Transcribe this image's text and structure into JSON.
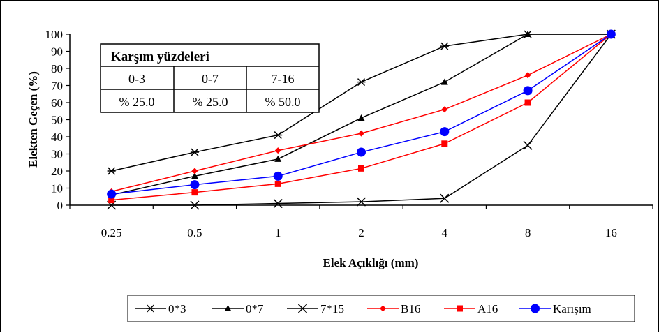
{
  "chart_data": {
    "type": "line",
    "title": "",
    "xlabel": "Elek Açıklığı (mm)",
    "ylabel": "Elekten Geçen (%)",
    "categories": [
      "0.25",
      "0.5",
      "1",
      "2",
      "4",
      "8",
      "16"
    ],
    "ylim": [
      0,
      100
    ],
    "yticks": [
      0,
      10,
      20,
      30,
      40,
      50,
      60,
      70,
      80,
      90,
      100
    ],
    "grid": false,
    "legend_position": "bottom",
    "series": [
      {
        "name": "0*3",
        "color": "#000000",
        "marker": "star",
        "values": [
          20,
          31,
          41,
          72,
          93,
          100,
          100
        ]
      },
      {
        "name": "0*7",
        "color": "#000000",
        "marker": "triangle",
        "values": [
          6,
          17,
          27,
          51,
          72,
          100,
          100
        ]
      },
      {
        "name": "7*15",
        "color": "#000000",
        "marker": "x",
        "values": [
          0,
          0,
          1,
          2,
          4,
          35,
          100
        ]
      },
      {
        "name": "B16",
        "color": "#ff0000",
        "marker": "diamond",
        "values": [
          8,
          20,
          32,
          42,
          56,
          76,
          100
        ]
      },
      {
        "name": "A16",
        "color": "#ff0000",
        "marker": "square",
        "values": [
          3,
          7.5,
          12.5,
          21.5,
          36,
          60,
          100
        ]
      },
      {
        "name": "Karışım",
        "color": "#0000ff",
        "marker": "circle",
        "values": [
          6.5,
          12,
          17,
          31,
          43,
          67,
          100
        ]
      }
    ],
    "inset_table": {
      "title": "Karşım yüzdeleri",
      "headers": [
        "0-3",
        "0-7",
        "7-16"
      ],
      "values": [
        "% 25.0",
        "% 25.0",
        "% 50.0"
      ]
    }
  }
}
